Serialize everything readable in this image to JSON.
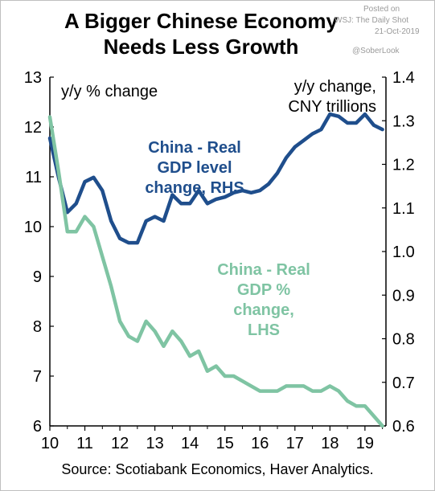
{
  "header": {
    "title_line1": "A Bigger Chinese Economy",
    "title_line2": "Needs Less Growth"
  },
  "watermark": {
    "posted": "Posted on",
    "outlet": "WSJ: The Daily Shot",
    "date": "21-Oct-2019",
    "handle": "@SoberLook"
  },
  "footer": {
    "source": "Source: Scotiabank Economics, Haver Analytics."
  },
  "chart_data": {
    "type": "line",
    "left_axis_label": "y/y % change",
    "right_axis_label_line1": "y/y change,",
    "right_axis_label_line2": "CNY trillions",
    "x_ticks": [
      "10",
      "11",
      "12",
      "13",
      "14",
      "15",
      "16",
      "17",
      "18",
      "19"
    ],
    "x_range": [
      10,
      19.6
    ],
    "y_left_range": [
      6,
      13
    ],
    "y_left_ticks": [
      "6",
      "7",
      "8",
      "9",
      "10",
      "11",
      "12",
      "13"
    ],
    "y_right_range": [
      0.6,
      1.4
    ],
    "y_right_ticks": [
      "0.6",
      "0.7",
      "0.8",
      "0.9",
      "1.0",
      "1.1",
      "1.2",
      "1.3",
      "1.4"
    ],
    "grid": false,
    "series": [
      {
        "axis": "right",
        "color": "#1f4e8c",
        "label_lines": [
          "China - Real",
          "GDP level",
          "change, RHS"
        ],
        "x": [
          10,
          10.25,
          10.5,
          10.75,
          11,
          11.25,
          11.5,
          11.75,
          12,
          12.25,
          12.5,
          12.75,
          13,
          13.25,
          13.5,
          13.75,
          14,
          14.25,
          14.5,
          14.75,
          15,
          15.25,
          15.5,
          15.75,
          16,
          16.25,
          16.5,
          16.75,
          17,
          17.25,
          17.5,
          17.75,
          18,
          18.25,
          18.5,
          18.75,
          19,
          19.25,
          19.5
        ],
        "y": [
          1.26,
          1.17,
          1.09,
          1.11,
          1.16,
          1.17,
          1.14,
          1.07,
          1.03,
          1.02,
          1.02,
          1.07,
          1.08,
          1.07,
          1.13,
          1.11,
          1.11,
          1.14,
          1.11,
          1.12,
          1.125,
          1.135,
          1.14,
          1.135,
          1.14,
          1.155,
          1.18,
          1.215,
          1.24,
          1.255,
          1.27,
          1.28,
          1.315,
          1.31,
          1.295,
          1.295,
          1.315,
          1.29,
          1.28
        ]
      },
      {
        "axis": "left",
        "color": "#7fc4a3",
        "label_lines": [
          "China - Real",
          "GDP %",
          "change,",
          "LHS"
        ],
        "x": [
          10,
          10.25,
          10.5,
          10.75,
          11,
          11.25,
          11.5,
          11.75,
          12,
          12.25,
          12.5,
          12.75,
          13,
          13.25,
          13.5,
          13.75,
          14,
          14.25,
          14.5,
          14.75,
          15,
          15.25,
          15.5,
          15.75,
          16,
          16.25,
          16.5,
          16.75,
          17,
          17.25,
          17.5,
          17.75,
          18,
          18.25,
          18.5,
          18.75,
          19,
          19.25,
          19.5
        ],
        "y": [
          12.2,
          11.1,
          9.9,
          9.9,
          10.2,
          10.0,
          9.4,
          8.8,
          8.1,
          7.8,
          7.7,
          8.1,
          7.9,
          7.6,
          7.9,
          7.7,
          7.4,
          7.5,
          7.1,
          7.2,
          7.0,
          7.0,
          6.9,
          6.8,
          6.7,
          6.7,
          6.7,
          6.8,
          6.8,
          6.8,
          6.7,
          6.7,
          6.8,
          6.7,
          6.5,
          6.4,
          6.4,
          6.2,
          6.0
        ]
      }
    ]
  }
}
